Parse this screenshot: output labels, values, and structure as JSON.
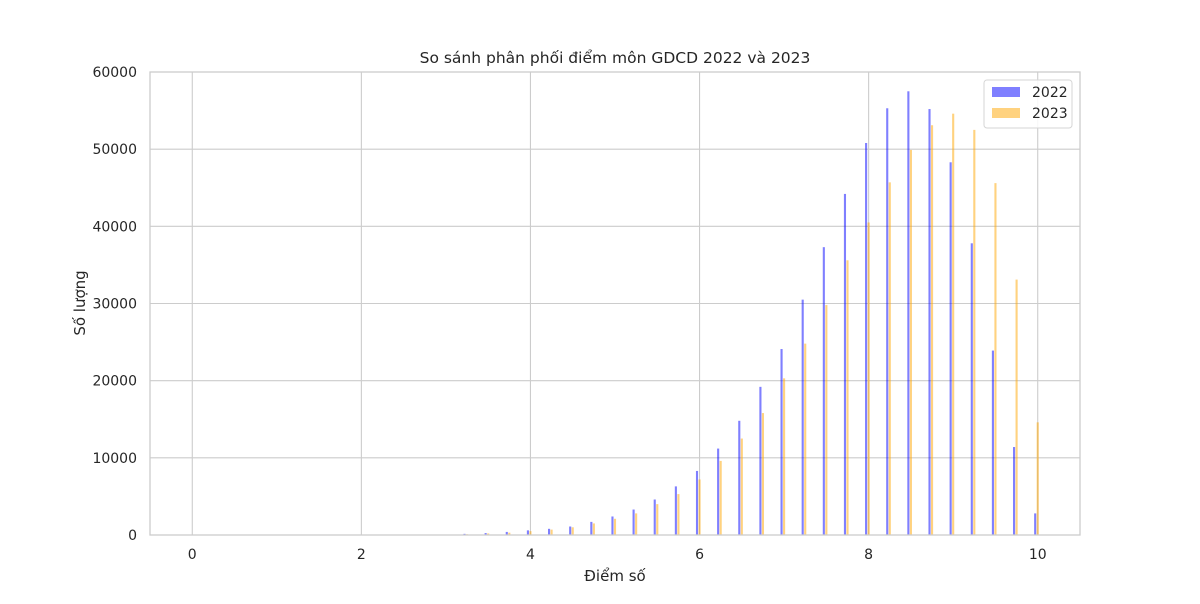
{
  "chart_data": {
    "type": "bar",
    "title": "So sánh phân phối điểm môn GDCD 2022 và 2023",
    "xlabel": "Điểm số",
    "ylabel": "Số lượng",
    "xlim": [
      -0.5,
      10.5
    ],
    "ylim": [
      0,
      60000
    ],
    "xticks": [
      0,
      2,
      4,
      6,
      8,
      10
    ],
    "yticks": [
      0,
      10000,
      20000,
      30000,
      40000,
      50000,
      60000
    ],
    "grid": true,
    "legend_position": "top-right",
    "x": [
      0,
      0.25,
      0.5,
      0.75,
      1,
      1.25,
      1.5,
      1.75,
      2,
      2.25,
      2.5,
      2.75,
      3,
      3.25,
      3.5,
      3.75,
      4,
      4.25,
      4.5,
      4.75,
      5,
      5.25,
      5.5,
      5.75,
      6,
      6.25,
      6.5,
      6.75,
      7,
      7.25,
      7.5,
      7.75,
      8,
      8.25,
      8.5,
      8.75,
      9,
      9.25,
      9.5,
      9.75,
      10
    ],
    "series": [
      {
        "name": "2022",
        "color": "#0000ff",
        "opacity": 0.5,
        "offset": -0.03,
        "values": [
          0,
          0,
          0,
          0,
          0,
          0,
          0,
          0,
          0,
          0,
          0,
          0,
          0,
          150,
          250,
          400,
          600,
          800,
          1100,
          1700,
          2400,
          3300,
          4600,
          6300,
          8300,
          11200,
          14800,
          19200,
          24100,
          30500,
          37300,
          44200,
          50800,
          55300,
          57500,
          55200,
          48300,
          37800,
          23900,
          11400,
          2800
        ]
      },
      {
        "name": "2023",
        "color": "#ffa500",
        "opacity": 0.5,
        "offset": 0.0,
        "values": [
          0,
          0,
          0,
          0,
          0,
          0,
          0,
          0,
          0,
          0,
          0,
          0,
          0,
          100,
          200,
          300,
          500,
          700,
          1000,
          1500,
          2100,
          2800,
          4000,
          5300,
          7200,
          9600,
          12500,
          15800,
          20300,
          24800,
          29800,
          35600,
          40500,
          45700,
          49900,
          53100,
          54600,
          52500,
          45600,
          33100,
          14600
        ]
      }
    ]
  }
}
